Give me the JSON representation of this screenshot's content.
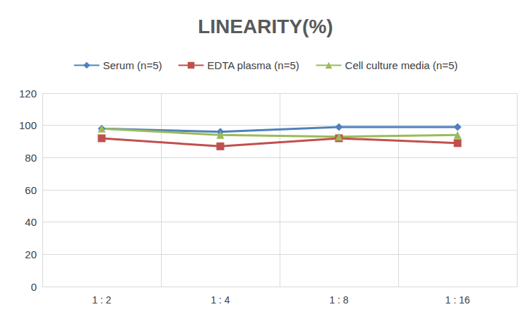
{
  "chart_data": {
    "type": "line",
    "title": "LINEARITY(%)",
    "categories": [
      "1 : 2",
      "1 : 4",
      "1 : 8",
      "1 : 16"
    ],
    "series": [
      {
        "name": "Serum (n=5)",
        "color": "#4f81bd",
        "marker": "diamond",
        "values": [
          98,
          96,
          99,
          99
        ]
      },
      {
        "name": "EDTA plasma (n=5)",
        "color": "#c0504d",
        "marker": "square",
        "values": [
          92,
          87,
          92,
          89
        ]
      },
      {
        "name": "Cell culture media (n=5)",
        "color": "#9bbb59",
        "marker": "triangle",
        "values": [
          98,
          94,
          93,
          94
        ]
      }
    ],
    "ylim": [
      0,
      120
    ],
    "yticks": [
      0,
      20,
      40,
      60,
      80,
      100,
      120
    ],
    "grid": true,
    "legend": "top"
  }
}
